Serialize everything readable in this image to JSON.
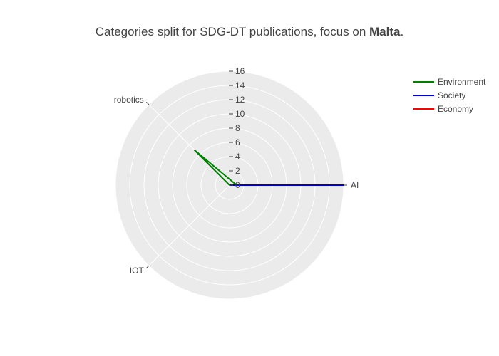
{
  "chart_data": {
    "type": "radar",
    "title_prefix": "Categories split for SDG-DT publications, focus on ",
    "title_focus": "Malta",
    "title_suffix": ".",
    "categories": [
      "AI",
      "robotics",
      "IOT"
    ],
    "radial_range": [
      0,
      16
    ],
    "radial_ticks": [
      "0",
      "2",
      "4",
      "6",
      "8",
      "10",
      "12",
      "14",
      "16"
    ],
    "grid": true,
    "legend_position": "top-right",
    "series": [
      {
        "name": "Environment",
        "color": "#008000",
        "values": [
          1,
          7,
          0
        ]
      },
      {
        "name": "Society",
        "color": "#0000cc",
        "values": [
          16,
          0,
          0
        ]
      },
      {
        "name": "Economy",
        "color": "#ff0000",
        "values": [
          0,
          0,
          0
        ]
      }
    ]
  }
}
